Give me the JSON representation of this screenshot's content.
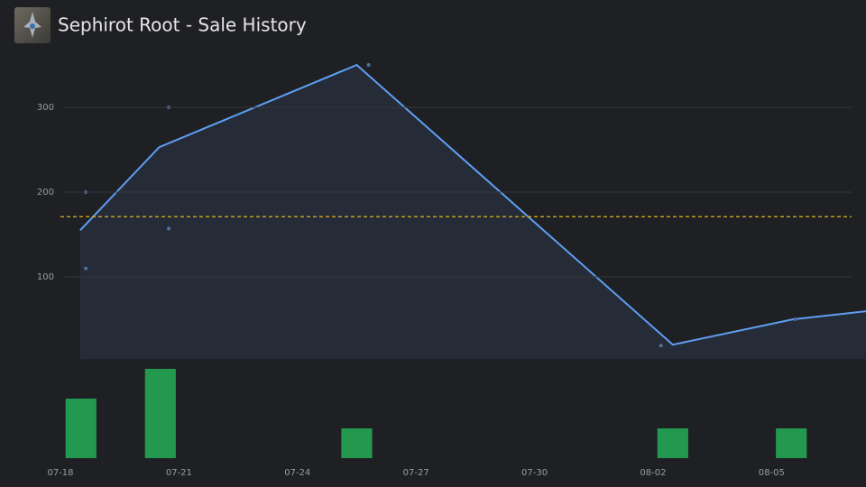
{
  "header": {
    "title": "Sephirot Root - Sale History"
  },
  "chart_data": [
    {
      "type": "line",
      "xlim": [
        0,
        20.39
      ],
      "ylim": [
        0,
        360
      ],
      "yticks": [
        100,
        200,
        300
      ],
      "grid": true,
      "reference_line": 171,
      "reference_color": "#e0b21f",
      "series": [
        {
          "type": "line",
          "color": "#5e9ef2",
          "x": [
            0.5,
            2.5,
            7.5,
            15.5,
            18.55,
            20.5
          ],
          "values": [
            155,
            253,
            350,
            20,
            50,
            60
          ]
        },
        {
          "type": "scatter",
          "color": "#4f6f9e",
          "x": [
            0.64,
            0.64,
            2.74,
            2.74,
            7.8,
            15.2,
            18.6
          ],
          "values": [
            200,
            110,
            300,
            157,
            350,
            19,
            50
          ]
        }
      ]
    },
    {
      "type": "bar",
      "xlim": [
        0,
        20.39
      ],
      "ylim": [
        0,
        3
      ],
      "color": "#23994f",
      "x": [
        0.52,
        2.53,
        7.5,
        15.5,
        18.5
      ],
      "values": [
        2,
        3,
        1,
        1,
        1
      ],
      "xticks": [
        {
          "value": 0,
          "label": "07-18"
        },
        {
          "value": 3,
          "label": "07-21"
        },
        {
          "value": 6,
          "label": "07-24"
        },
        {
          "value": 9,
          "label": "07-27"
        },
        {
          "value": 12,
          "label": "07-30"
        },
        {
          "value": 15,
          "label": "08-02"
        },
        {
          "value": 18,
          "label": "08-05"
        }
      ]
    }
  ]
}
